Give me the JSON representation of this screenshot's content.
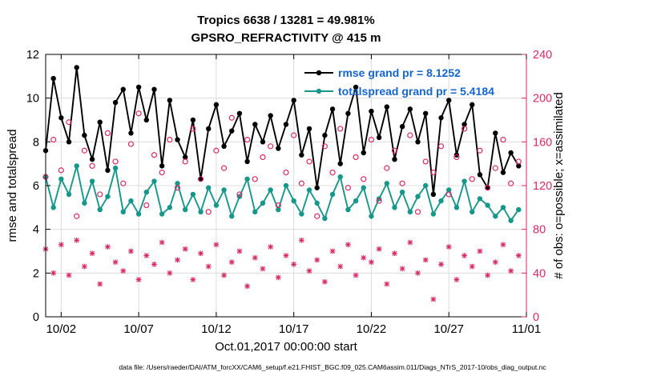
{
  "titles": {
    "line1": "Tropics 6638 / 13281 = 49.981%",
    "line2": "GPSRO_REFRACTIVITY @ 415 m"
  },
  "axes": {
    "left_label": "rmse and totalspread",
    "right_label": "# of obs: o=possible; x=assimilated",
    "x_label": "Oct.01,2017 00:00:00 start",
    "left_ticks": [
      0,
      2,
      4,
      6,
      8,
      10,
      12
    ],
    "right_ticks": [
      0,
      40,
      80,
      120,
      160,
      200,
      240
    ],
    "x_ticks": [
      {
        "day": 1,
        "label": "10/02"
      },
      {
        "day": 6,
        "label": "10/07"
      },
      {
        "day": 11,
        "label": "10/12"
      },
      {
        "day": 16,
        "label": "10/17"
      },
      {
        "day": 21,
        "label": "10/22"
      },
      {
        "day": 26,
        "label": "10/27"
      },
      {
        "day": 31,
        "label": "11/01"
      }
    ]
  },
  "legend": [
    {
      "series": "rmse",
      "label": "rmse grand pr = 8.1252"
    },
    {
      "series": "totalspread",
      "label": "totalspread grand pr = 5.4184"
    }
  ],
  "caption": "data file: /Users/raeder/DAI/ATM_forcXX/CAM6_setup/f.e21.FHIST_BGC.f09_025.CAM6assim.011/Diags_NTrS_2017-10/obs_diag_output.nc",
  "colors": {
    "pink": "#d92966",
    "teal": "#16978a",
    "black": "#000000",
    "legend_text": "#1565d0",
    "grid": "#dcdcdc"
  },
  "chart_data": {
    "type": "line",
    "title": "Tropics 6638 / 13281 = 49.981% — GPSRO_REFRACTIVITY @ 415 m",
    "xlabel": "Oct.01,2017 00:00:00 start",
    "ylabel_left": "rmse and totalspread",
    "ylabel_right": "# of obs: o=possible; x=assimilated",
    "x_unit": "days since 2017-10-01 00:00",
    "x_range": [
      0,
      31
    ],
    "ylim_left": [
      0,
      12
    ],
    "ylim_right": [
      0,
      240
    ],
    "grid": true,
    "legend_position": "top-right-inside",
    "x": [
      0,
      0.5,
      1,
      1.5,
      2,
      2.5,
      3,
      3.5,
      4,
      4.5,
      5,
      5.5,
      6,
      6.5,
      7,
      7.5,
      8,
      8.5,
      9,
      9.5,
      10,
      10.5,
      11,
      11.5,
      12,
      12.5,
      13,
      13.5,
      14,
      14.5,
      15,
      15.5,
      16,
      16.5,
      17,
      17.5,
      18,
      18.5,
      19,
      19.5,
      20,
      20.5,
      21,
      21.5,
      22,
      22.5,
      23,
      23.5,
      24,
      24.5,
      25,
      25.5,
      26,
      26.5,
      27,
      27.5,
      28,
      28.5,
      29,
      29.5,
      30,
      30.5
    ],
    "series": [
      {
        "name": "rmse",
        "axis": "left",
        "line": true,
        "marker": "filled-circle",
        "color": "#000000",
        "grand_mean": 8.1252,
        "values": [
          7.6,
          10.9,
          9.1,
          8.0,
          11.4,
          8.3,
          7.2,
          8.9,
          6.7,
          9.8,
          10.4,
          8.4,
          10.5,
          9.0,
          10.4,
          6.9,
          9.9,
          8.1,
          7.3,
          9.0,
          6.3,
          8.6,
          9.7,
          7.8,
          8.5,
          9.3,
          7.1,
          8.8,
          8.0,
          9.2,
          7.7,
          8.8,
          9.9,
          7.4,
          8.6,
          5.9,
          8.3,
          9.5,
          7.0,
          9.3,
          10.5,
          7.5,
          9.4,
          8.2,
          9.6,
          7.2,
          8.7,
          9.5,
          8.0,
          9.3,
          5.6,
          9.1,
          9.9,
          7.4,
          8.8,
          9.7,
          6.5,
          5.9,
          8.4,
          6.6,
          7.5,
          6.9
        ]
      },
      {
        "name": "totalspread",
        "axis": "left",
        "line": true,
        "marker": "filled-circle",
        "color": "#16978a",
        "grand_mean": 5.4184,
        "values": [
          6.4,
          5.0,
          6.3,
          5.6,
          6.9,
          5.2,
          6.2,
          4.9,
          5.5,
          6.8,
          4.8,
          5.3,
          4.7,
          5.7,
          6.2,
          4.7,
          5.0,
          6.1,
          4.9,
          5.6,
          4.8,
          5.9,
          5.1,
          5.8,
          4.6,
          5.5,
          6.3,
          4.8,
          5.2,
          5.8,
          4.9,
          6.0,
          5.3,
          4.7,
          5.8,
          5.2,
          4.5,
          5.6,
          6.4,
          4.9,
          5.3,
          5.9,
          4.6,
          5.4,
          6.1,
          5.0,
          5.7,
          4.8,
          5.5,
          6.0,
          4.7,
          5.3,
          5.8,
          5.0,
          6.2,
          4.8,
          5.4,
          5.1,
          4.6,
          5.0,
          4.4,
          4.9
        ]
      },
      {
        "name": "possible",
        "axis": "right",
        "line": false,
        "marker": "open-circle",
        "color": "#d92966",
        "values": [
          128,
          162,
          134,
          178,
          92,
          152,
          138,
          112,
          168,
          142,
          122,
          158,
          186,
          102,
          148,
          132,
          162,
          118,
          142,
          172,
          126,
          96,
          152,
          136,
          182,
          112,
          162,
          126,
          146,
          156,
          102,
          132,
          166,
          122,
          142,
          92,
          156,
          132,
          172,
          118,
          146,
          126,
          162,
          106,
          136,
          152,
          122,
          166,
          96,
          142,
          132,
          156,
          112,
          146,
          172,
          126,
          152,
          118,
          136,
          162,
          122,
          142
        ]
      },
      {
        "name": "assimilated",
        "axis": "right",
        "line": false,
        "marker": "asterisk",
        "color": "#d92966",
        "values": [
          62,
          40,
          66,
          38,
          70,
          46,
          58,
          30,
          64,
          50,
          42,
          60,
          34,
          56,
          48,
          68,
          40,
          52,
          62,
          34,
          58,
          46,
          66,
          38,
          50,
          60,
          28,
          54,
          44,
          64,
          36,
          56,
          48,
          70,
          42,
          52,
          32,
          60,
          46,
          66,
          38,
          54,
          50,
          62,
          30,
          58,
          44,
          68,
          40,
          52,
          16,
          48,
          64,
          34,
          56,
          46,
          60,
          38,
          50,
          66,
          42,
          56
        ]
      }
    ]
  }
}
